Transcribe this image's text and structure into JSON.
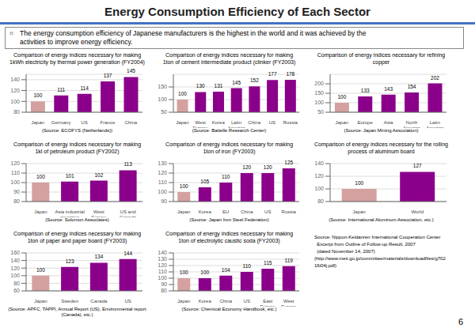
{
  "title": "Energy Consumption Efficiency of Each Sector",
  "subtitle": [
    "The energy consumption efficiency of Japanese manufacturers is the highest in the world and it was achieved by the",
    "activities to improve energy efficiency."
  ],
  "annotations": [
    "○",
    "Source: Nippon-Keidanren International Cooperation Center\n  Excerpt from Outline of Follow-up Result, 2007\n  (dated November 14, 2007)\n(http://www.meti.go.jp/committee/materials/downloadfiles/g702\n16i04j.pdf)",
    "6"
  ],
  "chart_data": [
    {
      "type": "bar",
      "title": "Comparison of energy indices necessary for making\n1kWh electricity by thermal power generation (FY2004)",
      "annotations": [
        "(Source: ECOFYS (Netherlands))"
      ],
      "categories": [
        "Japan",
        "Germany",
        "US",
        "France",
        "China"
      ],
      "values": [
        100,
        111,
        114,
        137,
        145
      ],
      "colors": [
        "#D4A0A0",
        "#8B008B",
        "#8B008B",
        "#8B008B",
        "#8B008B"
      ],
      "ylim": [
        80,
        150
      ],
      "yticks": [
        80,
        100,
        120,
        140
      ],
      "grid": true,
      "data_labels": true
    },
    {
      "type": "bar",
      "title": "Comparison of energy indices necessary for making\n1ton of cement intermediate product (clinker (FY2003)",
      "annotations": [
        "(Source: Battelle Research Center)"
      ],
      "categories": [
        "Japan",
        "West\nEurope",
        "Korea",
        "Latin\nAmerica",
        "China",
        "US",
        "Russia"
      ],
      "values": [
        100,
        130,
        131,
        145,
        152,
        177,
        178
      ],
      "colors": [
        "#D4A0A0",
        "#8B008B",
        "#8B008B",
        "#8B008B",
        "#8B008B",
        "#8B008B",
        "#8B008B"
      ],
      "ylim": [
        50,
        200
      ],
      "yticks": [
        50,
        100,
        150
      ],
      "grid": true,
      "data_labels": true
    },
    {
      "type": "bar",
      "title": "Comparison of energy indices necessary for refining copper",
      "annotations": [
        "(Source: Japan Mining Association)"
      ],
      "categories": [
        "Japan",
        "Europe",
        "Asia",
        "North\nAmerica",
        "Latin\nAmerica"
      ],
      "values": [
        100,
        133,
        143,
        154,
        202
      ],
      "colors": [
        "#D4A0A0",
        "#8B008B",
        "#8B008B",
        "#8B008B",
        "#8B008B"
      ],
      "ylim": [
        50,
        250
      ],
      "yticks": [
        50,
        100,
        150,
        200
      ],
      "grid": true,
      "data_labels": true
    },
    {
      "type": "bar",
      "title": "Comparison of energy indices necessary for making\n1kl of petroleum product (FY2002)",
      "annotations": [
        "(Source: Solomon Associates)"
      ],
      "categories": [
        "Japan",
        "Asia industrial\ncountries",
        "West\nEurope",
        "US and\nCanada"
      ],
      "values": [
        100,
        101,
        102,
        113
      ],
      "colors": [
        "#D4A0A0",
        "#8B008B",
        "#8B008B",
        "#8B008B"
      ],
      "ylim": [
        80,
        120
      ],
      "yticks": [
        80,
        90,
        100,
        110,
        120
      ],
      "grid": true,
      "data_labels": true
    },
    {
      "type": "bar",
      "title": "Comparison of energy indices necessary for making\n1ton of iron (FY2003)",
      "annotations": [
        "(Source: Japan Iron Steel Federation)"
      ],
      "categories": [
        "Japan",
        "Korea",
        "EU",
        "China",
        "US",
        "Russia"
      ],
      "values": [
        100,
        105,
        110,
        120,
        120,
        125
      ],
      "colors": [
        "#D4A0A0",
        "#8B008B",
        "#8B008B",
        "#8B008B",
        "#8B008B",
        "#8B008B"
      ],
      "ylim": [
        90,
        130
      ],
      "yticks": [
        90,
        100,
        110,
        120,
        130
      ],
      "grid": true,
      "data_labels": true
    },
    {
      "type": "bar",
      "title": "Comparison of energy indices necessary for the rolling\nprocess of aluminum board",
      "annotations": [
        "(Source: International Aluminum Association, etc.)"
      ],
      "categories": [
        "Japan",
        "World"
      ],
      "values": [
        100,
        127
      ],
      "colors": [
        "#D4A0A0",
        "#8B008B"
      ],
      "ylim": [
        80,
        140
      ],
      "yticks": [
        80,
        100,
        120,
        140
      ],
      "grid": true,
      "data_labels": true
    },
    {
      "type": "bar",
      "title": "Comparison of energy indices necessary for making\n1ton of paper and paper board (FY2003)",
      "annotations": [
        "(Source: APFC, TAPPI, Annual Report (US), Environmental report (Canada), etc.)"
      ],
      "categories": [
        "Japan",
        "Sweden",
        "Canada",
        "US"
      ],
      "values": [
        100,
        123,
        134,
        144
      ],
      "colors": [
        "#D4A0A0",
        "#8B008B",
        "#8B008B",
        "#8B008B"
      ],
      "ylim": [
        60,
        160
      ],
      "yticks": [
        60,
        80,
        100,
        120,
        140,
        160
      ],
      "grid": true,
      "data_labels": true
    },
    {
      "type": "bar",
      "title": "Comparison of energy indices necessary for making\n1ton of electrolytic caustic soda (FY2003)",
      "annotations": [
        "(Source: Chemical Economy Handbook, etc.)"
      ],
      "categories": [
        "Japan",
        "Korea",
        "China",
        "US",
        "East\nEurope",
        "West\nEurope"
      ],
      "values": [
        100,
        100,
        104,
        110,
        115,
        119
      ],
      "colors": [
        "#D4A0A0",
        "#8B008B",
        "#8B008B",
        "#8B008B",
        "#8B008B",
        "#8B008B"
      ],
      "ylim": [
        80,
        140
      ],
      "yticks": [
        80,
        90,
        100,
        110,
        120,
        130,
        140
      ],
      "grid": true,
      "data_labels": true
    }
  ]
}
